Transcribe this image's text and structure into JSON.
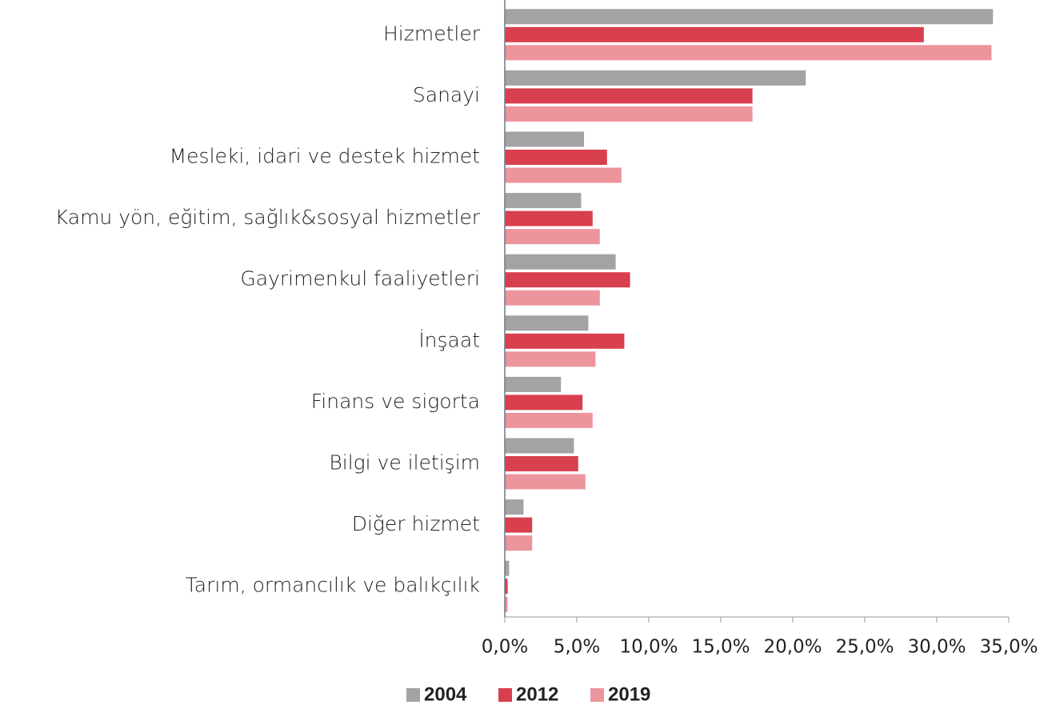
{
  "chart_data": {
    "type": "barh",
    "categories": [
      "Hizmetler",
      "Sanayi",
      "Mesleki, idari ve destek hizmet",
      "Kamu yön, eğitim, sağlık&sosyal hizmetler",
      "Gayrimenkul faaliyetleri",
      "İnşaat",
      "Finans ve sigorta",
      "Bilgi ve iletişim",
      "Diğer hizmet",
      "Tarım, ormancılık ve balıkçılık"
    ],
    "series": [
      {
        "name": "2004",
        "color": "#a3a3a3",
        "values": [
          33.9,
          20.9,
          5.5,
          5.3,
          7.7,
          5.8,
          3.9,
          4.8,
          1.3,
          0.3
        ]
      },
      {
        "name": "2012",
        "color": "#d9404f",
        "values": [
          29.1,
          17.2,
          7.1,
          6.1,
          8.7,
          8.3,
          5.4,
          5.1,
          1.9,
          0.2
        ]
      },
      {
        "name": "2019",
        "color": "#ec959c",
        "values": [
          33.8,
          17.2,
          8.1,
          6.6,
          6.6,
          6.3,
          6.1,
          5.6,
          1.9,
          0.2
        ]
      }
    ],
    "xlim": [
      0,
      35
    ],
    "xticks": [
      {
        "value": 0,
        "label": "0,0%"
      },
      {
        "value": 5,
        "label": "5,0%"
      },
      {
        "value": 10,
        "label": "10,0%"
      },
      {
        "value": 15,
        "label": "15,0%"
      },
      {
        "value": 20,
        "label": "20,0%"
      },
      {
        "value": 25,
        "label": "25,0%"
      },
      {
        "value": 30,
        "label": "30,0%"
      },
      {
        "value": 35,
        "label": "35,0%"
      }
    ],
    "grid": false,
    "legend": "bottom"
  }
}
